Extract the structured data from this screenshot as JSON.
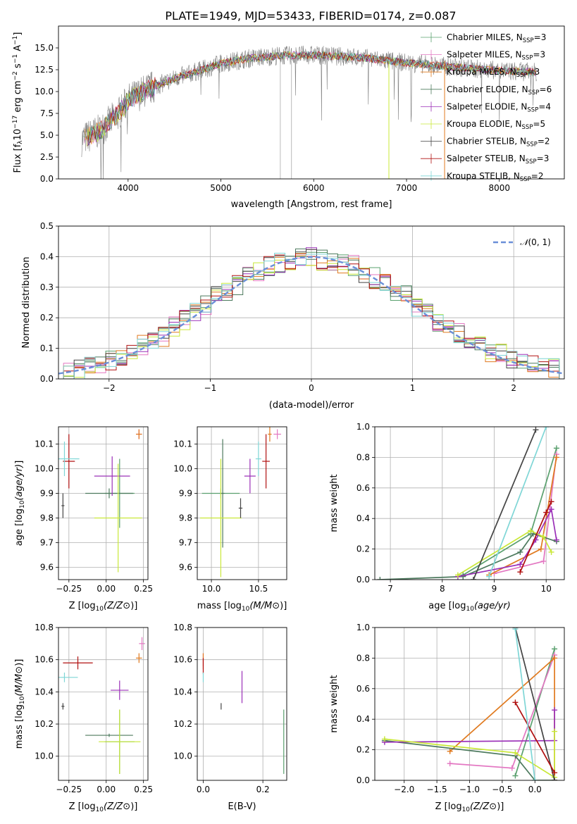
{
  "title": "PLATE=1949, MJD=53433, FIBERID=0174, z=0.087",
  "models": [
    {
      "name": "Chabrier MILES, N",
      "sub": "SSP",
      "tail": "=3",
      "color": "#5aa06e"
    },
    {
      "name": "Salpeter MILES, N",
      "sub": "SSP",
      "tail": "=3",
      "color": "#e377c2"
    },
    {
      "name": "Kroupa MILES, N",
      "sub": "SSP",
      "tail": "=3",
      "color": "#e07a1f"
    },
    {
      "name": "Chabrier ELODIE, N",
      "sub": "SSP",
      "tail": "=6",
      "color": "#4d7a5e"
    },
    {
      "name": "Salpeter ELODIE, N",
      "sub": "SSP",
      "tail": "=4",
      "color": "#9b30b8"
    },
    {
      "name": "Kroupa ELODIE, N",
      "sub": "SSP",
      "tail": "=5",
      "color": "#c9e838"
    },
    {
      "name": "Chabrier STELIB, N",
      "sub": "SSP",
      "tail": "=2",
      "color": "#444444"
    },
    {
      "name": "Salpeter STELIB, N",
      "sub": "SSP",
      "tail": "=3",
      "color": "#b01010"
    },
    {
      "name": "Kroupa STELIB, N",
      "sub": "SSP",
      "tail": "=2",
      "color": "#7fd6d6"
    }
  ],
  "chart_data": [
    {
      "type": "line",
      "id": "spectrum",
      "title": "PLATE=1949, MJD=53433, FIBERID=0174, z=0.087",
      "xlabel": "wavelength [Angstrom, rest frame]",
      "ylabel": "Flux [f",
      "xlim": [
        3250,
        8700
      ],
      "ylim": [
        0,
        17.5
      ],
      "xticks": [
        4000,
        5000,
        6000,
        7000,
        8000
      ],
      "yticks": [
        0.0,
        2.5,
        5.0,
        7.5,
        10.0,
        12.5,
        15.0
      ],
      "continuum": [
        [
          3500,
          4.5
        ],
        [
          3700,
          5.5
        ],
        [
          3900,
          7.5
        ],
        [
          4000,
          9.0
        ],
        [
          4200,
          10.2
        ],
        [
          4500,
          11.5
        ],
        [
          4800,
          12.5
        ],
        [
          5000,
          13.2
        ],
        [
          5300,
          13.8
        ],
        [
          5600,
          14.1
        ],
        [
          6000,
          14.2
        ],
        [
          6500,
          13.9
        ],
        [
          7000,
          13.3
        ],
        [
          7500,
          12.8
        ],
        [
          8000,
          12.4
        ],
        [
          8400,
          12.2
        ]
      ]
    },
    {
      "type": "bar",
      "id": "residuals",
      "xlabel": "(data-model)/error",
      "ylabel": "Normed distribution",
      "xlim": [
        -2.5,
        2.5
      ],
      "ylim": [
        0,
        0.5
      ],
      "xticks": [
        -2,
        -1,
        0,
        1,
        2
      ],
      "yticks": [
        0.0,
        0.1,
        0.2,
        0.3,
        0.4,
        0.5
      ],
      "reference_label": "(0, 1)",
      "hist_center": [
        0.02,
        0.03,
        0.04,
        0.05,
        0.06,
        0.07,
        0.09,
        0.11,
        0.12,
        0.14,
        0.17,
        0.19,
        0.22,
        0.24,
        0.27,
        0.29,
        0.31,
        0.34,
        0.35,
        0.37,
        0.38,
        0.39,
        0.4,
        0.4,
        0.39,
        0.39,
        0.38,
        0.37,
        0.35,
        0.33,
        0.31,
        0.29,
        0.27,
        0.24,
        0.22,
        0.19,
        0.17,
        0.15,
        0.13,
        0.11,
        0.09,
        0.08,
        0.07,
        0.06,
        0.05,
        0.04,
        0.04
      ]
    },
    {
      "type": "scatter",
      "id": "z-age",
      "xlabel": "Z [log",
      "ylabel": "age  [log",
      "xlim": [
        -0.32,
        0.28
      ],
      "ylim": [
        9.55,
        10.17
      ],
      "xticks": [
        -0.25,
        0.0,
        0.25
      ],
      "yticks": [
        9.6,
        9.7,
        9.8,
        9.9,
        10.0,
        10.1
      ],
      "points": [
        {
          "x": 0.09,
          "y": 9.9,
          "xe": 0.1,
          "ye": 0.14,
          "c": 0
        },
        {
          "x": 0.22,
          "y": 10.14,
          "xe": 0.02,
          "ye": 0.02,
          "c": 1
        },
        {
          "x": 0.22,
          "y": 10.14,
          "xe": 0.02,
          "ye": 0.02,
          "c": 2
        },
        {
          "x": 0.02,
          "y": 9.9,
          "xe": 0.16,
          "ye": 0.02,
          "c": 3
        },
        {
          "x": 0.04,
          "y": 9.97,
          "xe": 0.12,
          "ye": 0.08,
          "c": 4
        },
        {
          "x": 0.08,
          "y": 9.8,
          "xe": 0.16,
          "ye": 0.22,
          "c": 5
        },
        {
          "x": -0.29,
          "y": 9.85,
          "xe": 0.01,
          "ye": 0.05,
          "c": 6
        },
        {
          "x": -0.25,
          "y": 10.03,
          "xe": 0.04,
          "ye": 0.11,
          "c": 7
        },
        {
          "x": -0.28,
          "y": 10.04,
          "xe": 0.1,
          "ye": 0.07,
          "c": 8
        }
      ]
    },
    {
      "type": "scatter",
      "id": "mass-age",
      "xlabel": "mass [log",
      "ylabel": "",
      "xlim": [
        9.85,
        10.8
      ],
      "ylim": [
        9.55,
        10.17
      ],
      "xticks": [
        10.0,
        10.5
      ],
      "yticks": [
        9.6,
        9.7,
        9.8,
        9.9,
        10.0,
        10.1
      ],
      "points": [
        {
          "x": 10.1,
          "y": 9.9,
          "xe": 0.2,
          "ye": 0.02,
          "c": 0
        },
        {
          "x": 10.7,
          "y": 10.14,
          "xe": 0.04,
          "ye": 0.02,
          "c": 1
        },
        {
          "x": 10.62,
          "y": 10.14,
          "xe": 0.02,
          "ye": 0.03,
          "c": 2
        },
        {
          "x": 10.12,
          "y": 9.9,
          "xe": 0.02,
          "ye": 0.22,
          "c": 3
        },
        {
          "x": 10.41,
          "y": 9.97,
          "xe": 0.06,
          "ye": 0.07,
          "c": 4
        },
        {
          "x": 10.1,
          "y": 9.8,
          "xe": 0.22,
          "ye": 0.24,
          "c": 5
        },
        {
          "x": 10.31,
          "y": 9.84,
          "xe": 0.02,
          "ye": 0.04,
          "c": 6
        },
        {
          "x": 10.58,
          "y": 10.03,
          "xe": 0.04,
          "ye": 0.11,
          "c": 7
        },
        {
          "x": 10.5,
          "y": 10.04,
          "xe": 0.03,
          "ye": 0.07,
          "c": 8
        }
      ]
    },
    {
      "type": "line",
      "id": "age-weight",
      "xlabel": "age  [log",
      "ylabel": "mass weight",
      "xlim": [
        6.7,
        10.35
      ],
      "ylim": [
        0,
        1
      ],
      "xticks": [
        7,
        8,
        9,
        10
      ],
      "yticks": [
        0.0,
        0.2,
        0.4,
        0.6,
        0.8,
        1.0
      ],
      "series": [
        {
          "c": 0,
          "pts": [
            [
              8.4,
              0.03
            ],
            [
              9.7,
              0.3
            ],
            [
              10.2,
              0.86
            ]
          ]
        },
        {
          "c": 1,
          "pts": [
            [
              9.0,
              0.04
            ],
            [
              9.95,
              0.12
            ],
            [
              10.2,
              0.82
            ]
          ]
        },
        {
          "c": 2,
          "pts": [
            [
              8.9,
              0.03
            ],
            [
              9.9,
              0.2
            ],
            [
              10.2,
              0.8
            ]
          ]
        },
        {
          "c": 3,
          "pts": [
            [
              6.8,
              0.0
            ],
            [
              8.4,
              0.02
            ],
            [
              9.5,
              0.18
            ],
            [
              9.75,
              0.3
            ],
            [
              10.2,
              0.25
            ]
          ]
        },
        {
          "c": 4,
          "pts": [
            [
              8.3,
              0.02
            ],
            [
              9.5,
              0.1
            ],
            [
              9.8,
              0.26
            ],
            [
              10.1,
              0.46
            ],
            [
              10.2,
              0.26
            ]
          ]
        },
        {
          "c": 5,
          "pts": [
            [
              8.3,
              0.03
            ],
            [
              9.7,
              0.32
            ],
            [
              9.95,
              0.28
            ],
            [
              10.1,
              0.18
            ]
          ]
        },
        {
          "c": 6,
          "pts": [
            [
              8.6,
              0.0
            ],
            [
              9.8,
              0.98
            ]
          ]
        },
        {
          "c": 7,
          "pts": [
            [
              9.5,
              0.05
            ],
            [
              10.0,
              0.44
            ],
            [
              10.1,
              0.51
            ]
          ]
        },
        {
          "c": 8,
          "pts": [
            [
              8.9,
              0.02
            ],
            [
              10.0,
              1.0
            ]
          ]
        }
      ]
    },
    {
      "type": "scatter",
      "id": "z-mass",
      "xlabel": "Z [log",
      "ylabel": "mass [log",
      "xlim": [
        -0.32,
        0.28
      ],
      "ylim": [
        9.85,
        10.8
      ],
      "xticks": [
        -0.25,
        0.0,
        0.25
      ],
      "yticks": [
        10.0,
        10.2,
        10.4,
        10.6,
        10.8
      ],
      "points": [
        {
          "x": 0.09,
          "y": 10.09,
          "xe": 0.1,
          "ye": 0.2,
          "c": 0
        },
        {
          "x": 0.24,
          "y": 10.7,
          "xe": 0.02,
          "ye": 0.04,
          "c": 1
        },
        {
          "x": 0.22,
          "y": 10.61,
          "xe": 0.02,
          "ye": 0.03,
          "c": 2
        },
        {
          "x": 0.02,
          "y": 10.13,
          "xe": 0.16,
          "ye": 0.01,
          "c": 3
        },
        {
          "x": 0.09,
          "y": 10.41,
          "xe": 0.06,
          "ye": 0.06,
          "c": 4
        },
        {
          "x": 0.09,
          "y": 10.09,
          "xe": 0.14,
          "ye": 0.2,
          "c": 5
        },
        {
          "x": -0.29,
          "y": 10.31,
          "xe": 0.01,
          "ye": 0.02,
          "c": 6
        },
        {
          "x": -0.19,
          "y": 10.58,
          "xe": 0.1,
          "ye": 0.04,
          "c": 7
        },
        {
          "x": -0.28,
          "y": 10.49,
          "xe": 0.09,
          "ye": 0.03,
          "c": 8
        }
      ]
    },
    {
      "type": "scatter",
      "id": "ebv-mass",
      "xlabel": "E(B-V)",
      "ylabel": "",
      "xlim": [
        -0.02,
        0.28
      ],
      "ylim": [
        9.85,
        10.8
      ],
      "xticks": [
        0.0,
        0.2
      ],
      "yticks": [
        10.0,
        10.2,
        10.4,
        10.6,
        10.8
      ],
      "points": [
        {
          "x": 0.0,
          "y": 10.6,
          "xe": 0.0,
          "ye": 0.04,
          "c": 1
        },
        {
          "x": 0.0,
          "y": 10.59,
          "xe": 0.0,
          "ye": 0.05,
          "c": 2
        },
        {
          "x": 0.27,
          "y": 10.09,
          "xe": 0.0,
          "ye": 0.2,
          "c": 0
        },
        {
          "x": 0.13,
          "y": 10.43,
          "xe": 0.0,
          "ye": 0.1,
          "c": 4
        },
        {
          "x": 0.06,
          "y": 10.31,
          "xe": 0.0,
          "ye": 0.02,
          "c": 6
        },
        {
          "x": 0.0,
          "y": 10.56,
          "xe": 0.0,
          "ye": 0.05,
          "c": 7
        },
        {
          "x": 0.0,
          "y": 10.49,
          "xe": 0.0,
          "ye": 0.03,
          "c": 8
        }
      ]
    },
    {
      "type": "line",
      "id": "z-weight",
      "xlabel": "Z [log",
      "ylabel": "mass weight",
      "xlim": [
        -2.45,
        0.45
      ],
      "ylim": [
        0,
        1
      ],
      "xticks": [
        -2.0,
        -1.5,
        -1.0,
        -0.5,
        0.0
      ],
      "yticks": [
        0.0,
        0.2,
        0.4,
        0.6,
        0.8,
        1.0
      ],
      "series": [
        {
          "c": 0,
          "pts": [
            [
              -0.3,
              0.03
            ],
            [
              0.3,
              0.86
            ]
          ]
        },
        {
          "c": 1,
          "pts": [
            [
              -1.3,
              0.11
            ],
            [
              -0.35,
              0.08
            ],
            [
              0.3,
              0.82
            ]
          ]
        },
        {
          "c": 2,
          "pts": [
            [
              -1.3,
              0.19
            ],
            [
              0.3,
              0.8
            ],
            [
              0.3,
              0.0
            ]
          ]
        },
        {
          "c": 3,
          "pts": [
            [
              -2.3,
              0.26
            ],
            [
              -0.3,
              0.16
            ],
            [
              0.0,
              0.0
            ],
            [
              0.3,
              0.0
            ]
          ]
        },
        {
          "c": 4,
          "pts": [
            [
              -2.3,
              0.25
            ],
            [
              0.3,
              0.26
            ],
            [
              0.3,
              0.46
            ]
          ]
        },
        {
          "c": 5,
          "pts": [
            [
              -2.3,
              0.27
            ],
            [
              -0.3,
              0.18
            ],
            [
              0.3,
              0.02
            ],
            [
              0.3,
              0.32
            ]
          ]
        },
        {
          "c": 6,
          "pts": [
            [
              -0.3,
              1.0
            ],
            [
              0.3,
              0.0
            ]
          ]
        },
        {
          "c": 7,
          "pts": [
            [
              -0.3,
              0.51
            ],
            [
              0.3,
              0.05
            ]
          ]
        },
        {
          "c": 8,
          "pts": [
            [
              -0.3,
              0.99
            ],
            [
              0.0,
              0.0
            ]
          ]
        }
      ]
    }
  ]
}
